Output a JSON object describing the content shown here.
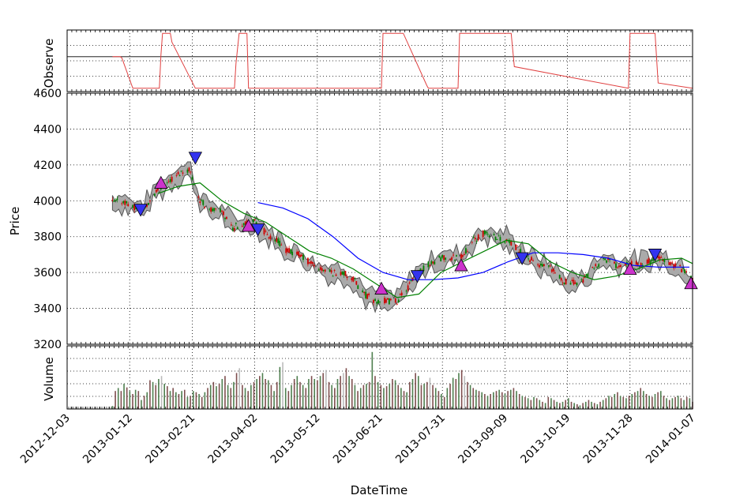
{
  "chart_data": [
    {
      "type": "line",
      "panel": "observer",
      "ylabel": "Observe",
      "y_tick_labels": [
        "4600"
      ],
      "line_color": "#e04040",
      "x": [
        "2013-01-01",
        "2013-01-06",
        "2013-01-07",
        "2013-01-14",
        "2013-01-20",
        "2013-01-31",
        "2013-02-01",
        "2013-02-02",
        "2013-02-07",
        "2013-02-08",
        "2013-02-23",
        "2013-03-20",
        "2013-03-21",
        "2013-03-23",
        "2013-03-28",
        "2013-03-29",
        "2013-06-22",
        "2013-06-23",
        "2013-07-04",
        "2013-07-06",
        "2013-07-21",
        "2013-07-22",
        "2013-08-10",
        "2013-08-11",
        "2013-09-13",
        "2013-09-15",
        "2013-11-27",
        "2013-11-28",
        "2013-12-14",
        "2013-12-16",
        "2014-01-07"
      ],
      "values": [
        0.57,
        0.57,
        0.55,
        0.03,
        0.03,
        0.03,
        0.6,
        0.97,
        0.97,
        0.82,
        0.03,
        0.03,
        0.45,
        0.97,
        0.97,
        0.03,
        0.03,
        0.97,
        0.97,
        0.97,
        0.08,
        0.03,
        0.03,
        0.97,
        0.97,
        0.4,
        0.03,
        0.97,
        0.97,
        0.12,
        0.03
      ],
      "ref_line": 0.57
    },
    {
      "type": "candlestick",
      "panel": "price",
      "xlabel": "DateTime",
      "ylabel": "Price",
      "ylim": [
        3200,
        4600
      ],
      "y_ticks": [
        3200,
        3400,
        3600,
        3800,
        4000,
        4200,
        4400
      ],
      "x_tick_labels": [
        "2012-12-03",
        "2013-01-12",
        "2013-02-21",
        "2013-04-02",
        "2013-05-12",
        "2013-06-21",
        "2013-07-31",
        "2013-09-09",
        "2013-10-19",
        "2013-11-28",
        "2014-01-07"
      ],
      "x_ticks": [
        "2012-12-03",
        "2013-01-12",
        "2013-02-21",
        "2013-04-02",
        "2013-05-12",
        "2013-06-21",
        "2013-07-31",
        "2013-09-09",
        "2013-10-19",
        "2013-11-28",
        "2014-01-07"
      ],
      "xlim": [
        "2012-12-03",
        "2014-01-07"
      ],
      "grid": true,
      "close_path": {
        "x": [
          "2013-01-01",
          "2013-01-08",
          "2013-01-15",
          "2013-01-22",
          "2013-01-29",
          "2013-02-05",
          "2013-02-12",
          "2013-02-19",
          "2013-02-26",
          "2013-03-05",
          "2013-03-12",
          "2013-03-19",
          "2013-03-26",
          "2013-04-02",
          "2013-04-09",
          "2013-04-16",
          "2013-04-23",
          "2013-04-30",
          "2013-05-07",
          "2013-05-14",
          "2013-05-21",
          "2013-05-28",
          "2013-06-04",
          "2013-06-11",
          "2013-06-18",
          "2013-06-25",
          "2013-07-02",
          "2013-07-09",
          "2013-07-16",
          "2013-07-23",
          "2013-07-30",
          "2013-08-06",
          "2013-08-13",
          "2013-08-20",
          "2013-08-27",
          "2013-09-03",
          "2013-09-10",
          "2013-09-17",
          "2013-09-24",
          "2013-10-01",
          "2013-10-08",
          "2013-10-15",
          "2013-10-22",
          "2013-10-29",
          "2013-11-05",
          "2013-11-12",
          "2013-11-19",
          "2013-11-26",
          "2013-12-03",
          "2013-12-10",
          "2013-12-17",
          "2013-12-24",
          "2013-12-31",
          "2014-01-07"
        ],
        "values": [
          3990,
          4000,
          3960,
          3960,
          4060,
          4100,
          4150,
          4180,
          4000,
          3950,
          3940,
          3850,
          3880,
          3880,
          3820,
          3780,
          3720,
          3700,
          3660,
          3620,
          3600,
          3600,
          3560,
          3480,
          3440,
          3440,
          3440,
          3520,
          3600,
          3650,
          3680,
          3680,
          3700,
          3780,
          3820,
          3800,
          3780,
          3730,
          3680,
          3640,
          3620,
          3560,
          3540,
          3560,
          3620,
          3680,
          3640,
          3660,
          3640,
          3660,
          3680,
          3650,
          3620,
          3560
        ]
      },
      "band_width": 90,
      "sma_short": {
        "color": "#008000",
        "x": [
          "2013-01-30",
          "2013-02-12",
          "2013-02-26",
          "2013-03-12",
          "2013-03-26",
          "2013-04-09",
          "2013-04-23",
          "2013-05-07",
          "2013-05-21",
          "2013-06-04",
          "2013-06-18",
          "2013-07-02",
          "2013-07-16",
          "2013-07-30",
          "2013-08-13",
          "2013-08-27",
          "2013-09-10",
          "2013-09-24",
          "2013-10-08",
          "2013-10-22",
          "2013-11-05",
          "2013-11-19",
          "2013-12-03",
          "2013-12-17",
          "2013-12-31",
          "2014-01-07"
        ],
        "values": [
          4040,
          4080,
          4100,
          4000,
          3930,
          3880,
          3800,
          3720,
          3680,
          3620,
          3540,
          3460,
          3480,
          3600,
          3660,
          3720,
          3780,
          3760,
          3660,
          3600,
          3560,
          3580,
          3620,
          3670,
          3680,
          3650
        ]
      },
      "sma_long": {
        "color": "#0000ff",
        "x": [
          "2013-04-04",
          "2013-04-20",
          "2013-05-06",
          "2013-05-22",
          "2013-06-07",
          "2013-06-23",
          "2013-07-09",
          "2013-07-25",
          "2013-08-10",
          "2013-08-26",
          "2013-09-11",
          "2013-09-27",
          "2013-10-13",
          "2013-10-29",
          "2013-11-14",
          "2013-11-30",
          "2013-12-16",
          "2014-01-05"
        ],
        "values": [
          3990,
          3960,
          3900,
          3800,
          3680,
          3600,
          3560,
          3560,
          3570,
          3600,
          3660,
          3710,
          3710,
          3700,
          3680,
          3640,
          3630,
          3630
        ]
      },
      "buy_markers": {
        "color": "#cc33cc",
        "x": [
          "2013-02-01",
          "2013-03-29",
          "2013-06-22",
          "2013-08-12",
          "2013-11-28",
          "2014-01-06"
        ],
        "values": [
          4100,
          3860,
          3510,
          3640,
          3620,
          3540
        ]
      },
      "sell_markers": {
        "color": "#3333ee",
        "x": [
          "2013-01-19",
          "2013-02-23",
          "2013-04-04",
          "2013-07-15",
          "2013-09-20",
          "2013-12-14"
        ],
        "values": [
          3950,
          4240,
          3840,
          3580,
          3680,
          3700
        ]
      },
      "up_color": "#008000",
      "down_color": "#d00000",
      "band_color": "#aaaaaa"
    },
    {
      "type": "bar",
      "panel": "volume",
      "ylabel": "Volume",
      "colors": [
        "#4f7f4f",
        "#7f4f4f",
        "#bbbbbb"
      ],
      "x_start": "2013-01-01",
      "x_end": "2014-01-07",
      "values": [
        0.05,
        0.3,
        0.35,
        0.3,
        0.42,
        0.36,
        0.3,
        0.25,
        0.32,
        0.3,
        0.15,
        0.22,
        0.28,
        0.48,
        0.45,
        0.4,
        0.5,
        0.55,
        0.42,
        0.38,
        0.3,
        0.35,
        0.28,
        0.25,
        0.3,
        0.32,
        0.2,
        0.22,
        0.3,
        0.28,
        0.25,
        0.2,
        0.28,
        0.35,
        0.4,
        0.45,
        0.38,
        0.42,
        0.5,
        0.55,
        0.4,
        0.35,
        0.45,
        0.6,
        0.68,
        0.4,
        0.35,
        0.3,
        0.4,
        0.45,
        0.5,
        0.55,
        0.6,
        0.5,
        0.48,
        0.4,
        0.3,
        0.45,
        0.7,
        0.78,
        0.35,
        0.3,
        0.4,
        0.5,
        0.55,
        0.45,
        0.4,
        0.35,
        0.5,
        0.55,
        0.5,
        0.48,
        0.55,
        0.6,
        0.65,
        0.45,
        0.4,
        0.35,
        0.5,
        0.55,
        0.6,
        0.68,
        0.55,
        0.5,
        0.4,
        0.3,
        0.35,
        0.4,
        0.42,
        0.45,
        0.95,
        0.55,
        0.45,
        0.4,
        0.35,
        0.38,
        0.42,
        0.5,
        0.48,
        0.4,
        0.35,
        0.3,
        0.28,
        0.45,
        0.5,
        0.6,
        0.55,
        0.4,
        0.42,
        0.45,
        0.52,
        0.4,
        0.35,
        0.3,
        0.25,
        0.2,
        0.35,
        0.42,
        0.52,
        0.5,
        0.6,
        0.65,
        0.55,
        0.45,
        0.4,
        0.35,
        0.32,
        0.3,
        0.28,
        0.25,
        0.22,
        0.25,
        0.28,
        0.3,
        0.32,
        0.28,
        0.25,
        0.3,
        0.32,
        0.35,
        0.3,
        0.25,
        0.22,
        0.2,
        0.18,
        0.15,
        0.2,
        0.18,
        0.15,
        0.12,
        0.1,
        0.2,
        0.18,
        0.15,
        0.12,
        0.1,
        0.12,
        0.15,
        0.18,
        0.12,
        0.1,
        0.08,
        0.06,
        0.1,
        0.12,
        0.15,
        0.12,
        0.1,
        0.08,
        0.12,
        0.15,
        0.18,
        0.22,
        0.2,
        0.25,
        0.28,
        0.22,
        0.2,
        0.18,
        0.22,
        0.25,
        0.28,
        0.3,
        0.35,
        0.3,
        0.25,
        0.22,
        0.2,
        0.25,
        0.28,
        0.3,
        0.22,
        0.18,
        0.15,
        0.18,
        0.2,
        0.22,
        0.18,
        0.15,
        0.2,
        0.18,
        0.12
      ]
    }
  ]
}
